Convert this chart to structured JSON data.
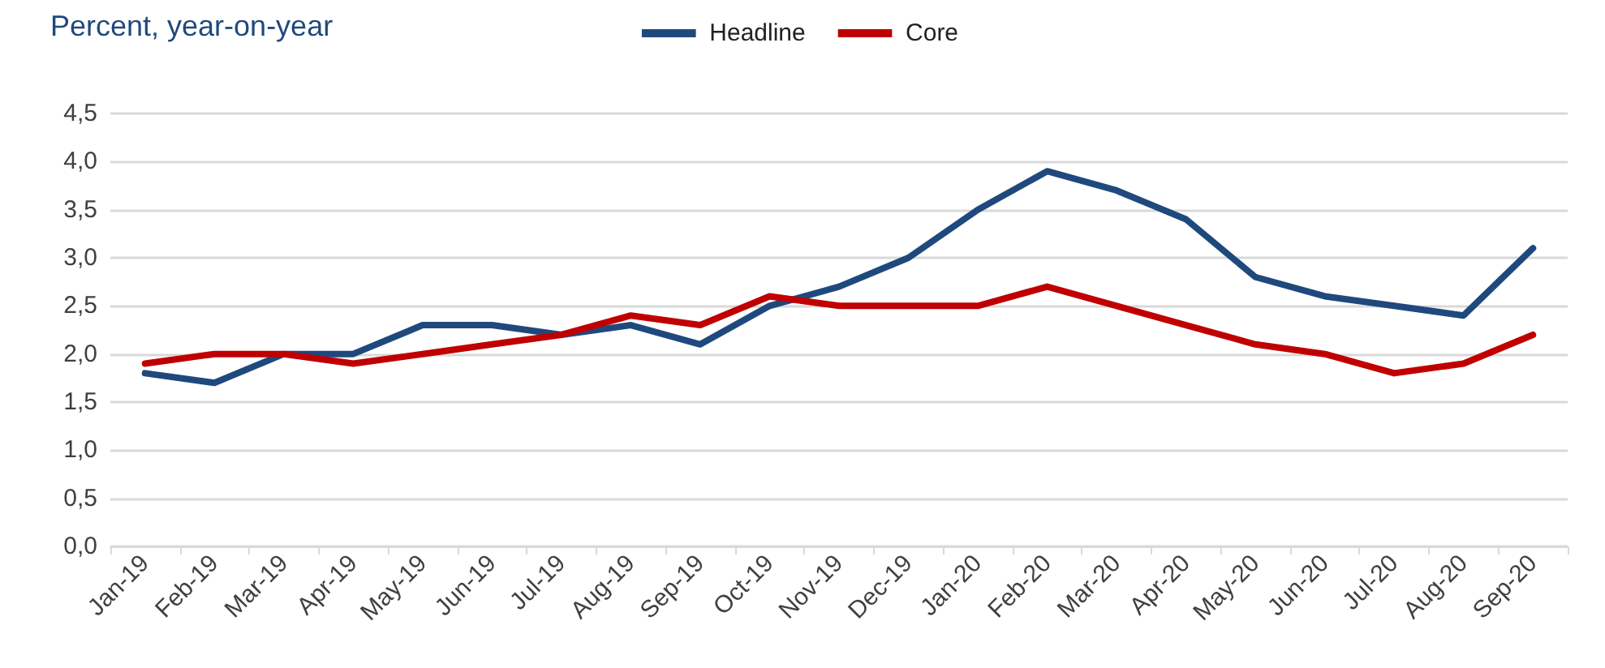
{
  "chart_data": {
    "type": "line",
    "ylabel": "Percent, year-on-year",
    "categories": [
      "Jan-19",
      "Feb-19",
      "Mar-19",
      "Apr-19",
      "May-19",
      "Jun-19",
      "Jul-19",
      "Aug-19",
      "Sep-19",
      "Oct-19",
      "Nov-19",
      "Dec-19",
      "Jan-20",
      "Feb-20",
      "Mar-20",
      "Apr-20",
      "May-20",
      "Jun-20",
      "Jul-20",
      "Aug-20",
      "Sep-20"
    ],
    "series": [
      {
        "name": "Headline",
        "color": "#1f497d",
        "values": [
          1.8,
          1.7,
          2.0,
          2.0,
          2.3,
          2.3,
          2.2,
          2.3,
          2.1,
          2.5,
          2.7,
          3.0,
          3.5,
          3.9,
          3.7,
          3.4,
          2.8,
          2.6,
          2.5,
          2.4,
          3.1
        ]
      },
      {
        "name": "Core",
        "color": "#c00000",
        "values": [
          1.9,
          2.0,
          2.0,
          1.9,
          2.0,
          2.1,
          2.2,
          2.4,
          2.3,
          2.6,
          2.5,
          2.5,
          2.5,
          2.7,
          2.5,
          2.3,
          2.1,
          2.0,
          1.8,
          1.9,
          2.2
        ]
      }
    ],
    "ylim": [
      0,
      4.5
    ],
    "yticks": [
      {
        "value": 0,
        "label": "0,0"
      },
      {
        "value": 0.5,
        "label": "0,5"
      },
      {
        "value": 1,
        "label": "1,0"
      },
      {
        "value": 1.5,
        "label": "1,5"
      },
      {
        "value": 2,
        "label": "2,0"
      },
      {
        "value": 2.5,
        "label": "2,5"
      },
      {
        "value": 3,
        "label": "3,0"
      },
      {
        "value": 3.5,
        "label": "3,5"
      },
      {
        "value": 4,
        "label": "4,0"
      },
      {
        "value": 4.5,
        "label": "4,5"
      }
    ],
    "grid": "y",
    "legend": "top",
    "marker": "none",
    "line_style": "solid"
  }
}
